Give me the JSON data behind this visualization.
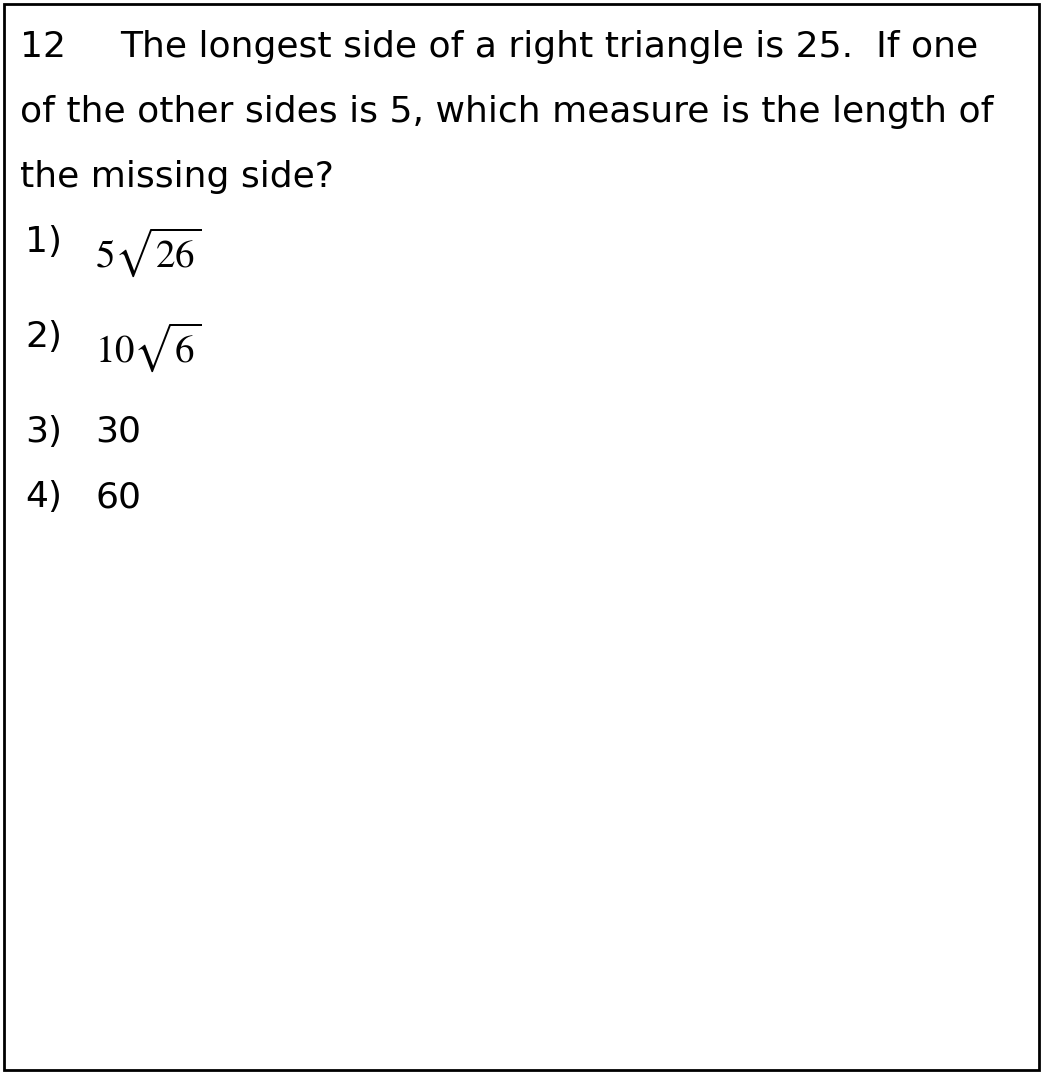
{
  "background_color": "#ffffff",
  "border_color": "#000000",
  "question_number": "12",
  "question_text_line1": "The longest side of a right triangle is 25.  If one",
  "question_text_line2": "of the other sides is 5, which measure is the length of",
  "question_text_line3": "the missing side?",
  "opt1_num": "1)",
  "opt2_num": "2)",
  "opt3_num": "3)",
  "opt3_val": "30",
  "opt4_num": "4)",
  "opt4_val": "60",
  "font_size_question": 26,
  "font_size_options": 26,
  "text_color": "#000000",
  "figwidth": 10.43,
  "figheight": 10.74,
  "dpi": 100
}
